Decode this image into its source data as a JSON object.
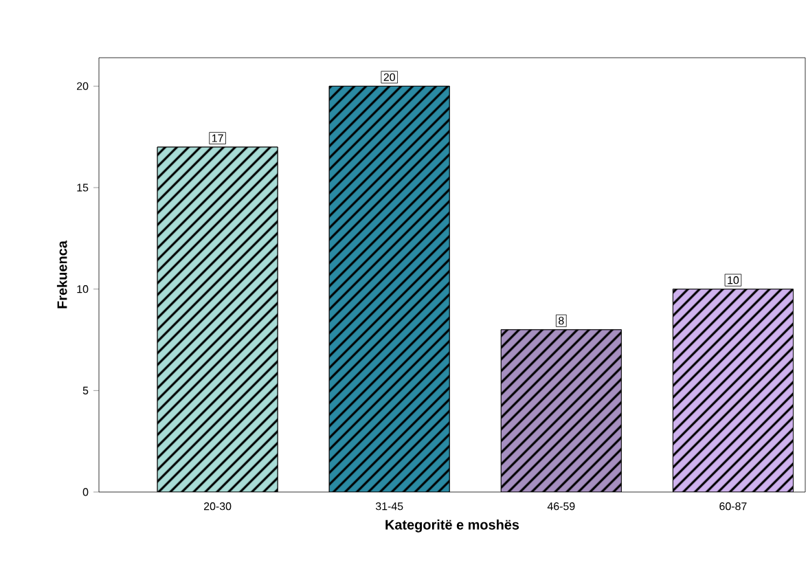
{
  "chart_data": {
    "type": "bar",
    "xlabel": "Kategoritë e moshës",
    "ylabel": "Frekuenca",
    "categories": [
      "20-30",
      "31-45",
      "46-59",
      "60-87"
    ],
    "values": [
      17,
      20,
      8,
      10
    ],
    "colors": [
      "#a8dcd6",
      "#2a8aa3",
      "#a68fc0",
      "#cfb2ee"
    ],
    "ylim": [
      0,
      21.4
    ],
    "yticks": [
      0,
      5,
      10,
      15,
      20
    ],
    "data_labels": true
  }
}
